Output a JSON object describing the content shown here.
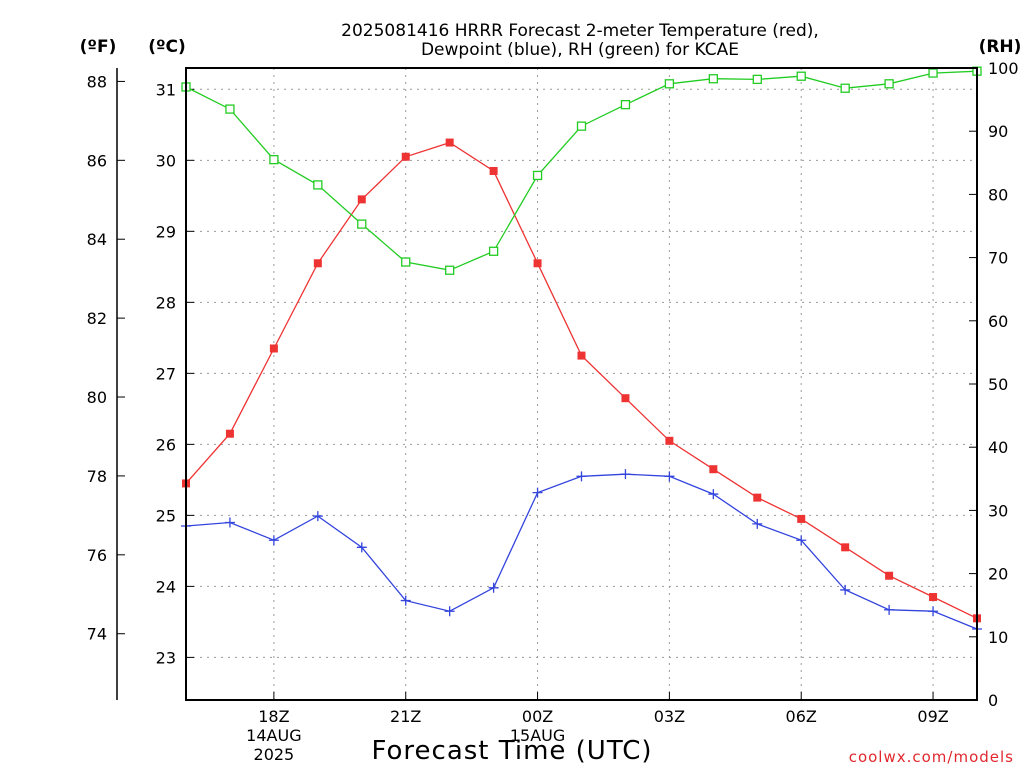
{
  "chart_data": {
    "type": "line",
    "title": [
      "2025081416 HRRR Forecast 2-meter Temperature (red),",
      "Dewpoint (blue), RH (green) for KCAE"
    ],
    "xlabel": "Forecast Time (UTC)",
    "credit": "coolwx.com/models",
    "units": {
      "fahrenheit": "(ºF)",
      "celsius": "(ºC)",
      "rh": "(RH)"
    },
    "y_left_celsius": {
      "range": [
        22.4,
        31.3
      ],
      "ticks": [
        23,
        24,
        25,
        26,
        27,
        28,
        29,
        30,
        31
      ]
    },
    "y_far_left_fahrenheit": {
      "ticks": [
        74,
        76,
        78,
        80,
        82,
        84,
        86,
        88
      ]
    },
    "y_right_rh": {
      "range": [
        0,
        100
      ],
      "ticks": [
        0,
        10,
        20,
        30,
        40,
        50,
        60,
        70,
        80,
        90,
        100
      ]
    },
    "x_range_hours": [
      16,
      34
    ],
    "x_ticks": [
      {
        "hour": 18,
        "label": [
          "18Z",
          "14AUG",
          "2025"
        ]
      },
      {
        "hour": 21,
        "label": [
          "21Z"
        ]
      },
      {
        "hour": 24,
        "label": [
          "00Z",
          "15AUG"
        ]
      },
      {
        "hour": 27,
        "label": [
          "03Z"
        ]
      },
      {
        "hour": 30,
        "label": [
          "06Z"
        ]
      },
      {
        "hour": 33,
        "label": [
          "09Z"
        ]
      }
    ],
    "x_hours": [
      16,
      17,
      18,
      19,
      20,
      21,
      22,
      23,
      24,
      25,
      26,
      27,
      28,
      29,
      30,
      31,
      32,
      33,
      34
    ],
    "series": [
      {
        "name": "Temperature",
        "unit": "C",
        "color": "#ee3333",
        "marker": "filled-square",
        "values": [
          25.45,
          26.15,
          27.35,
          28.55,
          29.45,
          30.05,
          30.25,
          29.85,
          28.55,
          27.25,
          26.65,
          26.05,
          25.65,
          25.25,
          24.95,
          24.55,
          24.15,
          23.85,
          23.55
        ]
      },
      {
        "name": "Dewpoint",
        "unit": "C",
        "color": "#3344dd",
        "marker": "plus",
        "values": [
          24.85,
          24.9,
          24.65,
          24.99,
          24.55,
          23.8,
          23.65,
          23.98,
          25.32,
          25.55,
          25.58,
          25.55,
          25.3,
          24.88,
          24.65,
          23.95,
          23.67,
          23.65,
          23.4
        ]
      },
      {
        "name": "RH",
        "unit": "%",
        "color": "#22cc22",
        "marker": "open-square",
        "values": [
          97,
          93.5,
          85.5,
          81.5,
          75.3,
          69.3,
          68,
          71,
          83,
          90.8,
          94.2,
          97.5,
          98.3,
          98.2,
          98.7,
          96.8,
          97.5,
          99.2,
          99.5
        ]
      }
    ]
  }
}
